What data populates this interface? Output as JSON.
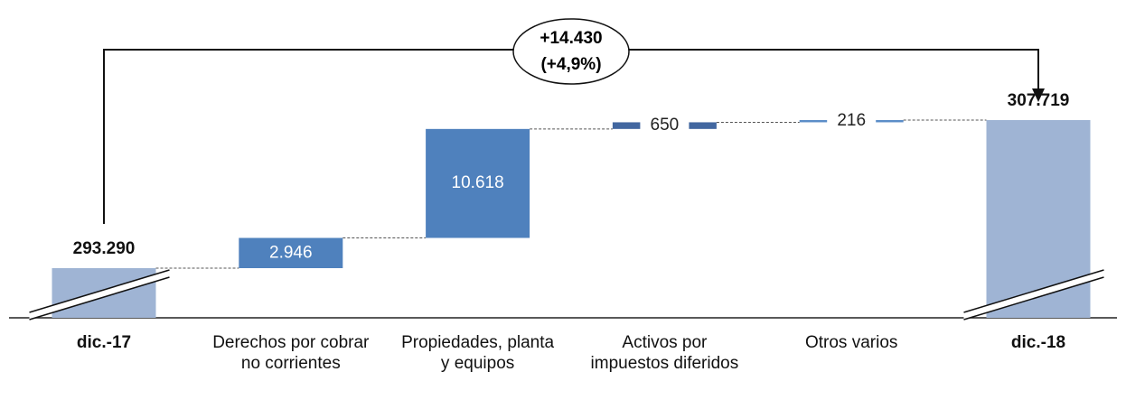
{
  "chart_data": {
    "type": "waterfall",
    "categories": [
      "dic.-17",
      "Derechos por cobrar no corrientes",
      "Propiedades, planta y equipos",
      "Activos por impuestos diferidos",
      "Otros varios",
      "dic.-18"
    ],
    "values": [
      293290,
      2946,
      10618,
      650,
      216,
      307719
    ],
    "value_labels": [
      "293.290",
      "2.946",
      "10.618",
      "650",
      "216",
      "307.719"
    ],
    "colors": [
      "#9fb4d4",
      "#4f81bd",
      "#4f81bd",
      "#4267a0",
      "#5b8dc8",
      "#9fb4d4"
    ],
    "annotation": {
      "change": "+14.430",
      "change_pct": "(+4,9%)"
    }
  }
}
